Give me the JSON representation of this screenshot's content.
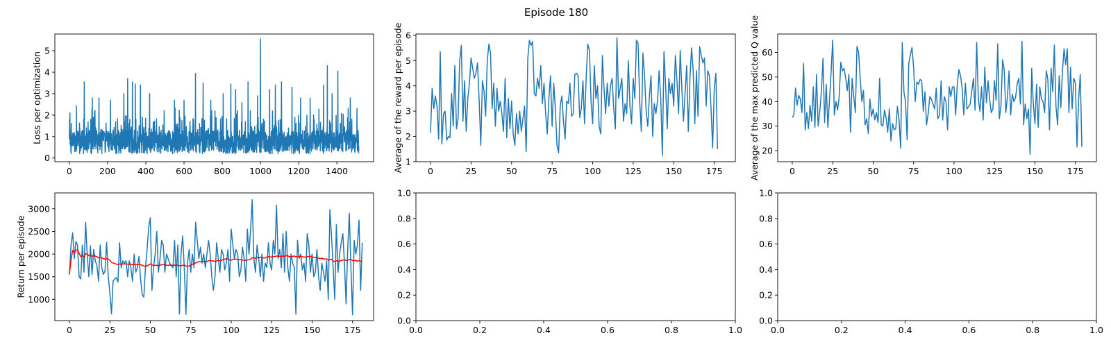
{
  "figure": {
    "suptitle": "Episode 180"
  },
  "colors": {
    "series": "#1f77b4",
    "trend": "#ff0000",
    "axis": "#000000",
    "background": "#ffffff"
  },
  "chart_data": [
    {
      "id": "loss",
      "type": "line",
      "ylabel": "Loss per optimization",
      "xlim": [
        -76,
        1592
      ],
      "ylim": [
        -0.17,
        5.78
      ],
      "xticks": [
        0,
        200,
        400,
        600,
        800,
        1000,
        1200,
        1400
      ],
      "yticks": [
        0,
        1,
        2,
        3,
        4,
        5
      ],
      "series": [
        {
          "generated": {
            "n": 1516,
            "base": 0.75,
            "noise": 0.55,
            "min": 0.2,
            "spikes": [
              [
                78,
                3.55
              ],
              [
                120,
                2.8
              ],
              [
                155,
                2.8
              ],
              [
                215,
                2.7
              ],
              [
                285,
                3.0
              ],
              [
                305,
                3.7
              ],
              [
                330,
                3.55
              ],
              [
                345,
                3.45
              ],
              [
                372,
                3.4
              ],
              [
                420,
                3.0
              ],
              [
                550,
                2.7
              ],
              [
                600,
                2.7
              ],
              [
                660,
                3.95
              ],
              [
                700,
                3.5
              ],
              [
                740,
                2.7
              ],
              [
                805,
                3.0
              ],
              [
                845,
                3.45
              ],
              [
                870,
                3.2
              ],
              [
                935,
                3.55
              ],
              [
                985,
                2.9
              ],
              [
                1000,
                5.55
              ],
              [
                1048,
                3.2
              ],
              [
                1078,
                3.4
              ],
              [
                1110,
                3.55
              ],
              [
                1165,
                3.3
              ],
              [
                1210,
                2.8
              ],
              [
                1260,
                2.8
              ],
              [
                1330,
                3.4
              ],
              [
                1350,
                4.3
              ],
              [
                1375,
                3.0
              ],
              [
                1405,
                4.05
              ],
              [
                1470,
                2.8
              ],
              [
                1505,
                2.3
              ]
            ]
          }
        }
      ]
    },
    {
      "id": "reward",
      "type": "line",
      "ylabel": "Average of the reward per episode",
      "xlim": [
        -9,
        188
      ],
      "ylim": [
        1.0,
        6.05
      ],
      "xticks": [
        0,
        25,
        50,
        75,
        100,
        125,
        150,
        175
      ],
      "yticks": [
        1,
        2,
        3,
        4,
        5,
        6
      ],
      "series": [
        {
          "x_start": 0,
          "values": [
            2.15,
            3.9,
            3.1,
            3.6,
            3.2,
            1.9,
            5.35,
            1.7,
            2.9,
            3.0,
            1.85,
            2.0,
            1.95,
            3.7,
            2.4,
            4.8,
            2.3,
            2.7,
            5.0,
            5.6,
            2.6,
            4.2,
            2.2,
            3.5,
            4.1,
            5.1,
            4.7,
            4.3,
            4.5,
            4.9,
            3.4,
            1.65,
            4.2,
            3.8,
            2.8,
            5.0,
            5.65,
            5.3,
            3.1,
            4.1,
            2.4,
            3.9,
            3.0,
            3.4,
            2.9,
            2.2,
            4.3,
            1.95,
            3.5,
            2.3,
            3.4,
            2.1,
            1.65,
            2.9,
            2.1,
            3.0,
            2.2,
            2.7,
            3.2,
            1.4,
            5.1,
            5.8,
            5.6,
            5.75,
            3.7,
            3.6,
            4.3,
            3.9,
            4.8,
            3.3,
            4.1,
            2.9,
            2.1,
            3.5,
            4.4,
            2.4,
            4.1,
            3.1,
            1.65,
            1.35,
            3.2,
            3.6,
            2.6,
            1.9,
            3.4,
            3.3,
            4.1,
            2.8,
            2.9,
            4.45,
            4.5,
            4.4,
            2.75,
            3.1,
            4.2,
            2.5,
            4.3,
            5.65,
            5.4,
            3.4,
            2.5,
            4.8,
            3.5,
            4.0,
            2.4,
            2.1,
            5.2,
            3.9,
            2.9,
            4.1,
            3.2,
            4.0,
            4.3,
            3.1,
            2.3,
            5.9,
            3.5,
            3.9,
            4.3,
            2.6,
            3.3,
            2.9,
            5.0,
            3.2,
            2.5,
            4.3,
            3.5,
            5.8,
            5.7,
            3.4,
            2.2,
            5.3,
            4.4,
            3.0,
            2.4,
            3.6,
            4.4,
            2.0,
            3.3,
            2.9,
            3.4,
            4.6,
            3.5,
            1.25,
            5.35,
            4.0,
            2.3,
            4.3,
            3.7,
            4.1,
            3.2,
            5.2,
            4.2,
            2.9,
            5.4,
            3.9,
            2.6,
            3.7,
            4.8,
            2.2,
            4.3,
            5.5,
            4.6,
            2.5,
            4.6,
            2.8,
            5.55,
            5.2,
            4.9,
            5.1,
            3.2,
            4.6,
            4.4,
            3.1,
            1.55,
            3.9,
            4.5,
            1.5
          ]
        }
      ]
    },
    {
      "id": "q",
      "type": "line",
      "ylabel": "Average of the max predicted Q value",
      "xlim": [
        -9,
        188
      ],
      "ylim": [
        15.5,
        67.5
      ],
      "xticks": [
        0,
        25,
        50,
        75,
        100,
        125,
        150,
        175
      ],
      "yticks": [
        20,
        30,
        40,
        50,
        60
      ],
      "series": [
        {
          "x_start": 0,
          "values": [
            33.5,
            34.5,
            45.5,
            38.5,
            42.5,
            41.0,
            35.5,
            55.5,
            28.5,
            35.5,
            29.0,
            38.5,
            32.0,
            46.0,
            29.5,
            51.0,
            30.0,
            36.0,
            44.0,
            57.5,
            31.5,
            47.0,
            29.5,
            40.5,
            52.0,
            65.0,
            34.5,
            40.0,
            36.5,
            42.0,
            56.0,
            52.5,
            53.5,
            49.5,
            44.5,
            51.0,
            27.5,
            49.5,
            42.0,
            35.5,
            62.5,
            60.0,
            49.5,
            40.0,
            44.5,
            30.5,
            33.0,
            27.0,
            41.0,
            34.0,
            37.0,
            32.5,
            35.5,
            31.5,
            49.5,
            30.5,
            30.0,
            36.5,
            33.5,
            27.5,
            37.0,
            24.0,
            31.0,
            28.5,
            29.0,
            38.0,
            32.5,
            21.0,
            64.0,
            44.0,
            40.0,
            24.5,
            55.5,
            59.0,
            62.0,
            54.0,
            40.0,
            48.0,
            47.0,
            49.0,
            48.5,
            36.0,
            44.0,
            30.5,
            35.0,
            42.0,
            41.0,
            39.0,
            37.0,
            45.5,
            33.0,
            34.5,
            48.5,
            32.5,
            42.0,
            40.0,
            28.5,
            46.0,
            42.0,
            46.0,
            46.0,
            34.5,
            47.0,
            53.0,
            50.5,
            45.5,
            34.5,
            47.5,
            37.0,
            38.0,
            39.0,
            44.5,
            49.5,
            36.5,
            64.0,
            41.0,
            36.0,
            46.0,
            32.5,
            54.0,
            39.5,
            48.5,
            41.0,
            35.5,
            37.0,
            48.5,
            40.5,
            63.5,
            33.0,
            38.0,
            57.0,
            53.0,
            35.5,
            42.0,
            52.5,
            34.5,
            43.0,
            40.0,
            41.5,
            47.0,
            49.5,
            39.0,
            64.5,
            30.5,
            39.0,
            33.0,
            37.0,
            18.5,
            53.5,
            39.0,
            31.0,
            47.0,
            29.5,
            46.0,
            41.0,
            40.0,
            35.5,
            52.5,
            49.0,
            28.5,
            53.5,
            44.0,
            63.0,
            38.0,
            30.5,
            50.5,
            37.5,
            52.5,
            61.5,
            55.0,
            61.5,
            35.5,
            54.0,
            37.0,
            49.5,
            47.5,
            21.5,
            41.0,
            51.0,
            21.5
          ]
        }
      ]
    },
    {
      "id": "return",
      "type": "line",
      "ylabel": "Return per episode",
      "xlim": [
        -9,
        188
      ],
      "ylim": [
        530,
        3350
      ],
      "xticks": [
        0,
        25,
        50,
        75,
        100,
        125,
        150,
        175
      ],
      "yticks": [
        1000,
        1500,
        2000,
        2500,
        3000
      ],
      "series": [
        {
          "x_start": 0,
          "values": [
            1550,
            2200,
            2470,
            1900,
            2280,
            2200,
            1500,
            1450,
            2200,
            1600,
            2700,
            2000,
            1500,
            2180,
            1550,
            2100,
            1850,
            1750,
            1400,
            2200,
            1700,
            1550,
            1630,
            2260,
            1500,
            1150,
            680,
            1400,
            1450,
            1480,
            1380,
            2250,
            1700,
            1850,
            1800,
            1850,
            1500,
            1850,
            1700,
            1400,
            2000,
            1600,
            1700,
            1950,
            1450,
            1100,
            1050,
            1700,
            2100,
            2600,
            2800,
            1200,
            1700,
            2000,
            2500,
            1600,
            1900,
            2300,
            2200,
            1600,
            2000,
            1900,
            1800,
            1750,
            1700,
            2300,
            1500,
            2200,
            680,
            2000,
            2400,
            1700,
            670,
            1800,
            2100,
            1600,
            2000,
            1700,
            2700,
            2300,
            1900,
            2150,
            1800,
            2000,
            1700,
            2000,
            2300,
            2000,
            1500,
            1200,
            1500,
            2250,
            1900,
            1600,
            2100,
            2000,
            1650,
            1800,
            2100,
            1400,
            2550,
            2200,
            1900,
            2100,
            2000,
            1500,
            1650,
            2150,
            1900,
            1400,
            2550,
            2000,
            2550,
            3200,
            1900,
            1600,
            2200,
            1900,
            1500,
            2000,
            1400,
            1800,
            1700,
            2250,
            1800,
            1650,
            2300,
            2000,
            3080,
            1900,
            2100,
            1700,
            2450,
            1600,
            2500,
            1700,
            1400,
            2000,
            1800,
            1700,
            670,
            2300,
            1900,
            2000,
            1650,
            1800,
            1400,
            2450,
            2200,
            1600,
            2000,
            1500,
            1600,
            2100,
            1500,
            1200,
            1800,
            1600,
            1400,
            1850,
            1000,
            2980,
            2400,
            1700,
            1000,
            2650,
            1600,
            2000,
            2250,
            2450,
            1800,
            900,
            2100,
            2900,
            1700,
            660,
            2300,
            2000,
            2200,
            2750,
            1200,
            2250
          ]
        }
      ],
      "trend": {
        "window": 50
      }
    },
    {
      "id": "empty1",
      "type": "line",
      "xlim": [
        0,
        1
      ],
      "ylim": [
        0,
        1
      ],
      "xticks": [
        0.0,
        0.2,
        0.4,
        0.6,
        0.8,
        1.0
      ],
      "yticks": [
        0.0,
        0.2,
        0.4,
        0.6,
        0.8,
        1.0
      ],
      "tick_decimals": 1,
      "series": []
    },
    {
      "id": "empty2",
      "type": "line",
      "xlim": [
        0,
        1
      ],
      "ylim": [
        0,
        1
      ],
      "xticks": [
        0.0,
        0.2,
        0.4,
        0.6,
        0.8,
        1.0
      ],
      "yticks": [
        0.0,
        0.2,
        0.4,
        0.6,
        0.8,
        1.0
      ],
      "tick_decimals": 1,
      "series": []
    }
  ]
}
